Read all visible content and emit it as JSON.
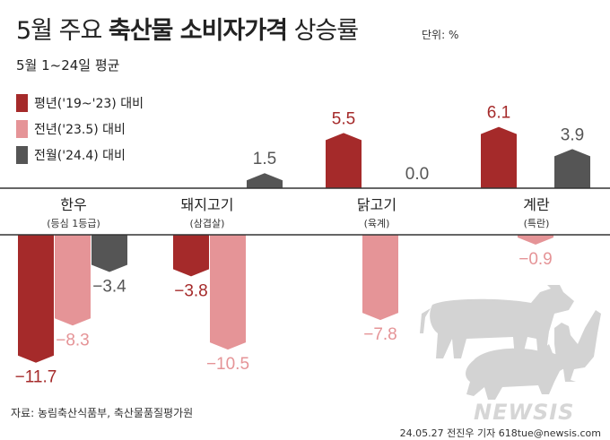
{
  "title_prefix": "5월 주요",
  "title_bold": "축산물 소비자가격",
  "title_suffix": "상승률",
  "unit": "단위: %",
  "subtitle": "5월 1~24일 평균",
  "source": "자료: 농림축산식품부, 축산물품질평가원",
  "credit": "24.05.27 전진우 기자 618tue@newsis.com",
  "watermark": "NEWSIS",
  "colors": {
    "series1": "#a52a2a",
    "series2": "#e59497",
    "series3": "#555555"
  },
  "chart_data": {
    "type": "bar",
    "categories": [
      "한우",
      "돼지고기",
      "닭고기",
      "계란"
    ],
    "category_notes": [
      "(등심 1등급)",
      "(삼겹살)",
      "(육계)",
      "(특란)"
    ],
    "series": [
      {
        "name": "평년('19~'23) 대비",
        "values": [
          -11.7,
          -3.8,
          5.5,
          6.1
        ]
      },
      {
        "name": "전년('23.5) 대비",
        "values": [
          -8.3,
          -10.5,
          -7.8,
          -0.9
        ]
      },
      {
        "name": "전월('24.4) 대비",
        "values": [
          -3.4,
          1.5,
          0.0,
          3.9
        ]
      }
    ],
    "value_labels": [
      [
        "−11.7",
        "−3.8",
        "5.5",
        "6.1"
      ],
      [
        "−8.3",
        "−10.5",
        "−7.8",
        "−0.9"
      ],
      [
        "−3.4",
        "1.5",
        "0.0",
        "3.9"
      ]
    ],
    "legend_position": "top-left"
  }
}
